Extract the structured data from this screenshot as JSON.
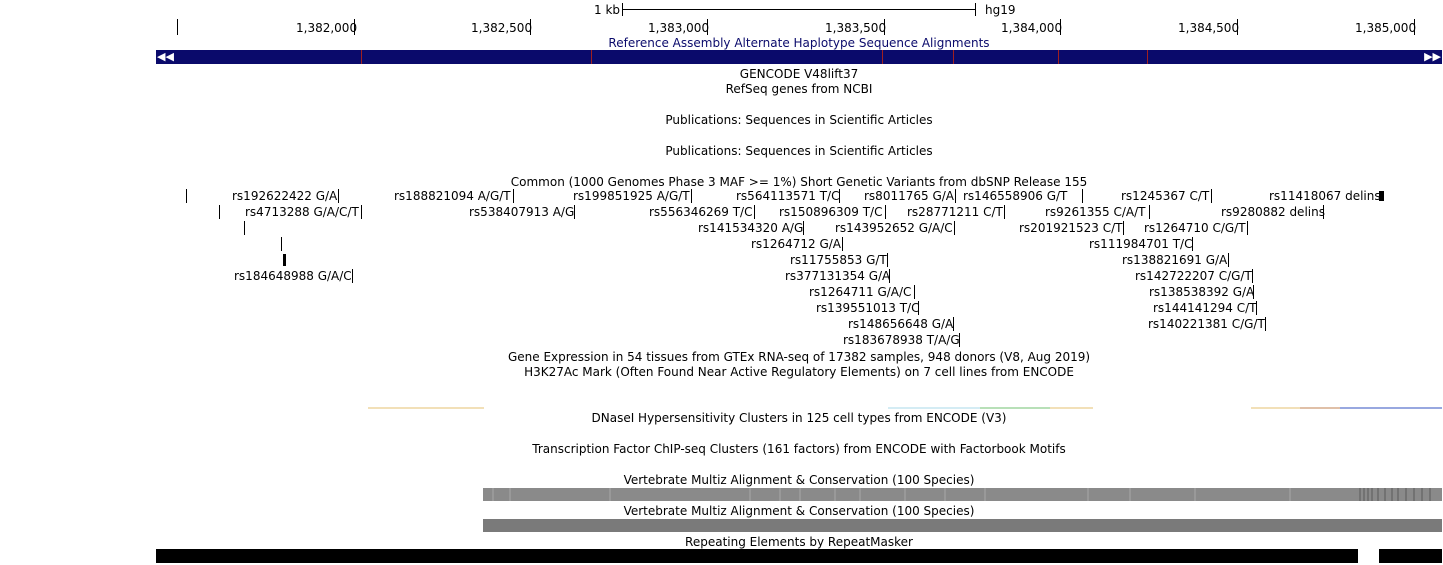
{
  "ruler": {
    "scale_label": "1 kb",
    "assembly": "hg19",
    "positions": [
      "1,382,000",
      "1,382,500",
      "1,383,000",
      "1,383,500",
      "1,384,000",
      "1,384,500",
      "1,385,000"
    ]
  },
  "tracks": {
    "alt_haplotype": "Reference Assembly Alternate Haplotype Sequence Alignments",
    "gencode": "GENCODE V48lift37",
    "refseq": "RefSeq genes from NCBI",
    "publications_1": "Publications: Sequences in Scientific Articles",
    "publications_2": "Publications: Sequences in Scientific Articles",
    "common_snps": "Common (1000 Genomes Phase 3 MAF >= 1%) Short Genetic Variants from dbSNP Release 155",
    "gtex": "Gene Expression in 54 tissues from GTEx RNA-seq of 17382 samples, 948 donors (V8, Aug 2019)",
    "h3k27ac": "H3K27Ac Mark (Often Found Near Active Regulatory Elements) on 7 cell lines from ENCODE",
    "dnase": "DNaseI Hypersensitivity Clusters in 125 cell types from ENCODE (V3)",
    "tfbs": "Transcription Factor ChIP-seq Clusters (161 factors) from ENCODE with Factorbook Motifs",
    "multiz_1": "Vertebrate Multiz Alignment & Conservation (100 Species)",
    "multiz_2": "Vertebrate Multiz Alignment & Conservation (100 Species)",
    "rmsk": "Repeating Elements by RepeatMasker"
  },
  "nav": {
    "left_arrow": "◀◀",
    "right_arrow": "▶▶"
  },
  "snps": [
    "rs192622422 G/A",
    "rs188821094 A/G/T",
    "rs199851925 A/G/T",
    "rs564113571 T/C",
    "rs8011765 G/A",
    "rs146558906 G/T",
    "rs1245367 C/T",
    "rs11418067 delins",
    "rs4713288 G/A/C/T",
    "rs538407913 A/G",
    "rs556346269 T/C",
    "rs150896309 T/C",
    "rs28771211 C/T",
    "rs9261355 C/A/T",
    "rs9280882 delins",
    "rs141534320 A/G",
    "rs143952652 G/A/C",
    "rs201921523 C/T",
    "rs1264710 C/G/T",
    "rs1264712 G/A",
    "rs111984701 T/C",
    "rs11755853 G/T",
    "rs138821691 G/A",
    "rs184648988 G/A/C",
    "rs377131354 G/A",
    "rs142722207 C/G/T",
    "rs1264711 G/A/C",
    "rs138538392 G/A",
    "rs139551013 T/C",
    "rs144141294 C/T",
    "rs148656648 G/A",
    "rs140221381 C/G/T",
    "rs183678938 T/A/G"
  ],
  "colors": {
    "assembly_bar": "#0a0a6b",
    "assembly_mark": "#a02020",
    "conservation": "#8a8a8a",
    "repeat": "#000000"
  }
}
